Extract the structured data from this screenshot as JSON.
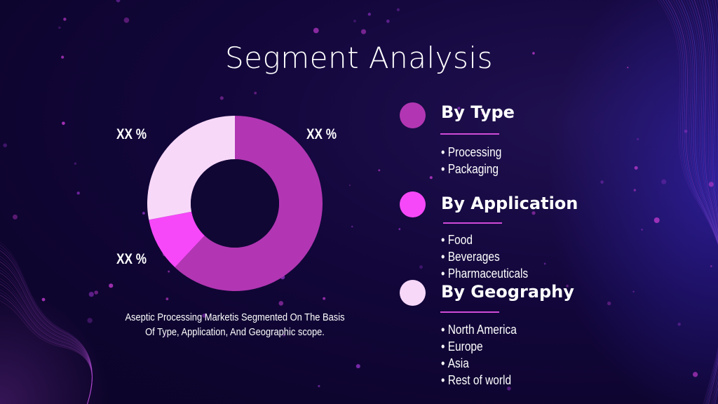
{
  "slide": {
    "title": "Segment Analysis",
    "caption": "Aseptic Processing Marketis Segmented On The Basis Of Type, Application, And Geographic scope."
  },
  "chart_data": {
    "type": "pie",
    "variant": "donut",
    "data_labels": [
      "XX %",
      "XX %",
      "XX %"
    ],
    "slices": [
      {
        "color": "#b236b3",
        "share": 0.62
      },
      {
        "color": "#f648f8",
        "share": 0.1
      },
      {
        "color": "#f8d8f9",
        "share": 0.28
      }
    ]
  },
  "segments": [
    {
      "heading": "By Type",
      "color": "#b236b3",
      "items": [
        "Processing",
        "Packaging"
      ]
    },
    {
      "heading": "By Application",
      "color": "#f648f8",
      "items": [
        "Food",
        "Beverages",
        "Pharmaceuticals"
      ]
    },
    {
      "heading": "By Geography",
      "color": "#f8d8f9",
      "items": [
        "North America",
        "Europe",
        "Asia",
        "Rest of world"
      ]
    }
  ]
}
